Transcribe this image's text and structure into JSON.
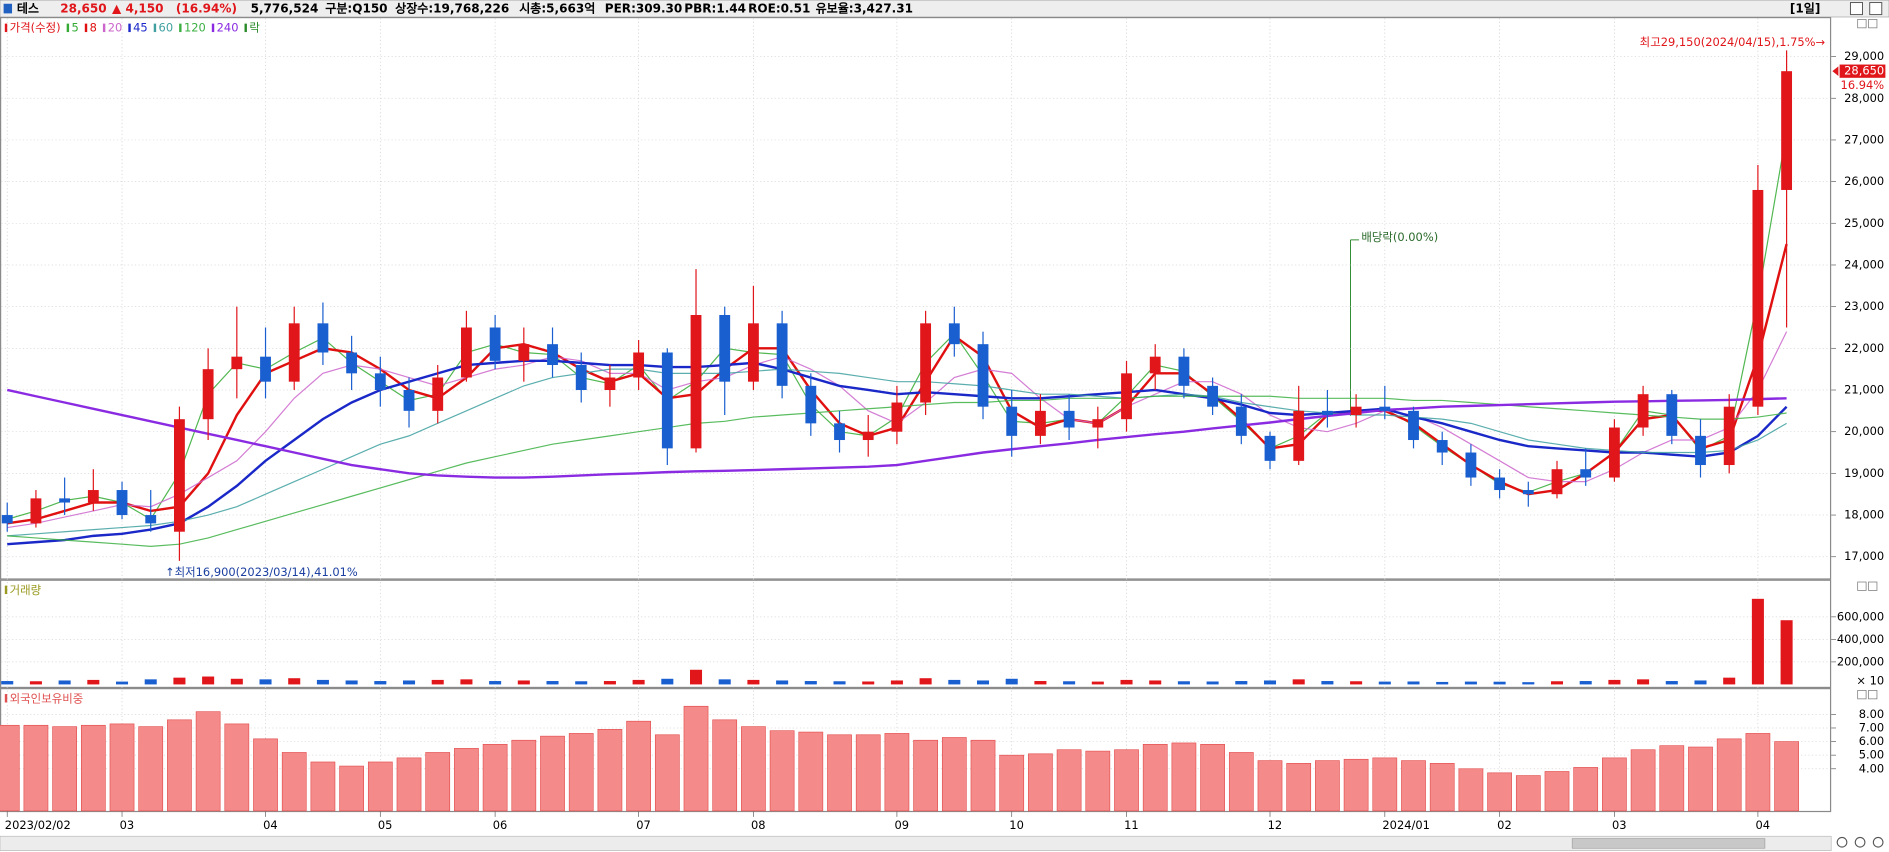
{
  "header": {
    "items": [
      {
        "text": "테스",
        "color": "#000000"
      },
      {
        "text": "28,650",
        "color": "#e0161b"
      },
      {
        "text": "▲ 4,150",
        "color": "#e0161b"
      },
      {
        "text": "(16.94%)",
        "color": "#e0161b"
      },
      {
        "text": "5,776,524",
        "color": "#000000"
      },
      {
        "text": "구분:Q150",
        "color": "#000000"
      },
      {
        "text": "상장수:19,768,226",
        "color": "#000000"
      },
      {
        "text": "시총:5,663억",
        "color": "#000000"
      },
      {
        "text": "PER:309.30",
        "color": "#000000"
      },
      {
        "text": "PBR:1.44",
        "color": "#000000"
      },
      {
        "text": "ROE:0.51",
        "color": "#000000"
      },
      {
        "text": "유보율:3,427.31",
        "color": "#000000"
      }
    ],
    "period": "[1일]"
  },
  "chart_data": [
    {
      "type": "candlestick",
      "price_label": "가격(수정)",
      "event_label": "락",
      "event_color": "#2a8a2a",
      "up_color": "#e0161b",
      "down_color": "#1a5fd0",
      "categories": [
        "2023/02/02",
        null,
        null,
        null,
        "03",
        null,
        null,
        null,
        null,
        "04",
        null,
        null,
        null,
        "05",
        null,
        null,
        null,
        "06",
        null,
        null,
        null,
        null,
        "07",
        null,
        null,
        null,
        "08",
        null,
        null,
        null,
        null,
        "09",
        null,
        null,
        null,
        "10",
        null,
        null,
        null,
        "11",
        null,
        null,
        null,
        null,
        "12",
        null,
        null,
        null,
        "2024/01",
        null,
        null,
        null,
        "02",
        null,
        null,
        null,
        "03",
        null,
        null,
        null,
        null,
        "04",
        null
      ],
      "open": [
        18000,
        17800,
        18400,
        18300,
        18600,
        18000,
        17600,
        20300,
        21500,
        21800,
        21200,
        22600,
        21900,
        21400,
        21000,
        20500,
        21300,
        22500,
        21700,
        22100,
        21600,
        21000,
        21300,
        21900,
        19600,
        22800,
        21200,
        22600,
        21100,
        20200,
        19800,
        20000,
        20700,
        22600,
        22100,
        20600,
        19900,
        20500,
        20100,
        20300,
        21400,
        21800,
        21100,
        20600,
        19900,
        19300,
        20500,
        20400,
        20600,
        20500,
        19800,
        19500,
        18900,
        18600,
        18500,
        19100,
        18900,
        20100,
        20900,
        19900,
        19200,
        20600,
        25800
      ],
      "high": [
        18300,
        18600,
        18900,
        19100,
        18800,
        18600,
        20600,
        22000,
        23000,
        22500,
        23000,
        23100,
        22300,
        21800,
        21300,
        21600,
        22900,
        22800,
        22500,
        22500,
        21900,
        21600,
        22200,
        22000,
        23900,
        23000,
        23500,
        22900,
        21400,
        20500,
        20400,
        21100,
        22900,
        23000,
        22400,
        21000,
        20900,
        20900,
        20600,
        21700,
        22100,
        22000,
        21300,
        20900,
        20000,
        21100,
        21000,
        20900,
        21100,
        20600,
        20000,
        19700,
        19100,
        18800,
        19300,
        19600,
        20300,
        21100,
        21000,
        20300,
        20900,
        26400,
        29150
      ],
      "low": [
        17600,
        17700,
        18000,
        18100,
        17900,
        17600,
        16900,
        19800,
        20800,
        20800,
        21000,
        21600,
        21000,
        20600,
        20100,
        20200,
        21200,
        21500,
        21200,
        21300,
        20700,
        20600,
        21000,
        19200,
        19500,
        20400,
        21000,
        20800,
        19900,
        19500,
        19400,
        19700,
        20400,
        21800,
        20300,
        19400,
        19700,
        19800,
        19600,
        20000,
        21000,
        20800,
        20400,
        19700,
        19100,
        19200,
        20100,
        20100,
        20300,
        19600,
        19200,
        18700,
        18400,
        18200,
        18400,
        18700,
        18800,
        19900,
        19700,
        18900,
        19000,
        20400,
        22500
      ],
      "close": [
        17800,
        18400,
        18300,
        18600,
        18000,
        17800,
        20300,
        21500,
        21800,
        21200,
        22600,
        21900,
        21400,
        21000,
        20500,
        21300,
        22500,
        21700,
        22100,
        21600,
        21000,
        21300,
        21900,
        19600,
        22800,
        21200,
        22600,
        21100,
        20200,
        19800,
        20000,
        20700,
        22600,
        22100,
        20600,
        19900,
        20500,
        20100,
        20300,
        21400,
        21800,
        21100,
        20600,
        19900,
        19300,
        20500,
        20400,
        20600,
        20500,
        19800,
        19500,
        18900,
        18600,
        18500,
        19100,
        18900,
        20100,
        20900,
        19900,
        19200,
        20600,
        25800,
        28650
      ],
      "series": [
        {
          "name": "5",
          "color": "#33aa33",
          "width": 1,
          "values": [
            17900,
            18100,
            18350,
            18450,
            18300,
            17900,
            19000,
            20900,
            21650,
            21500,
            21900,
            22250,
            21650,
            21200,
            20750,
            20900,
            21900,
            22100,
            21900,
            21850,
            21300,
            21150,
            21600,
            20750,
            21200,
            22000,
            21900,
            21850,
            20650,
            20000,
            19900,
            20350,
            21650,
            22350,
            21350,
            20250,
            20200,
            20300,
            20200,
            20850,
            21600,
            21450,
            20850,
            20250,
            19600,
            19900,
            20450,
            20500,
            20550,
            20150,
            19650,
            19200,
            18750,
            18550,
            18800,
            19000,
            19500,
            20500,
            20400,
            19550,
            19900,
            23200,
            27200
          ]
        },
        {
          "name": "8",
          "color": "#e01010",
          "width": 2,
          "values": [
            17800,
            17900,
            18100,
            18300,
            18300,
            18100,
            18200,
            19000,
            20400,
            21400,
            21700,
            22000,
            21900,
            21500,
            21000,
            20800,
            21300,
            22000,
            22100,
            21900,
            21500,
            21200,
            21400,
            20800,
            20900,
            21500,
            22000,
            22000,
            21000,
            20200,
            19900,
            20100,
            21200,
            22300,
            21800,
            20500,
            20100,
            20300,
            20200,
            20600,
            21400,
            21400,
            20900,
            20300,
            19600,
            19700,
            20400,
            20500,
            20500,
            20200,
            19700,
            19200,
            18800,
            18500,
            18600,
            19000,
            19500,
            20300,
            20400,
            19600,
            19800,
            21800,
            24500
          ]
        },
        {
          "name": "20",
          "color": "#cc66cc",
          "width": 1,
          "values": [
            17700,
            17800,
            17950,
            18100,
            18250,
            18200,
            18500,
            18900,
            19300,
            20000,
            20800,
            21400,
            21600,
            21500,
            21300,
            21100,
            21300,
            21500,
            21600,
            21800,
            21700,
            21400,
            21400,
            21000,
            21200,
            21300,
            21600,
            21800,
            21500,
            21100,
            20500,
            20200,
            20700,
            21300,
            21500,
            21400,
            20800,
            20300,
            20200,
            20600,
            20900,
            21200,
            21200,
            20900,
            20400,
            20100,
            20000,
            20200,
            20500,
            20400,
            20100,
            19700,
            19300,
            18900,
            18800,
            18800,
            19100,
            19500,
            19800,
            19800,
            20100,
            21000,
            22400
          ]
        },
        {
          "name": "45",
          "color": "#1a28c8",
          "width": 2,
          "values": [
            17300,
            17350,
            17400,
            17500,
            17550,
            17650,
            17800,
            18200,
            18700,
            19300,
            19800,
            20300,
            20700,
            21000,
            21200,
            21400,
            21600,
            21650,
            21700,
            21700,
            21650,
            21600,
            21600,
            21550,
            21550,
            21600,
            21650,
            21500,
            21300,
            21100,
            21000,
            20900,
            20950,
            20900,
            20850,
            20800,
            20800,
            20850,
            20900,
            20950,
            21000,
            20900,
            20800,
            20650,
            20450,
            20400,
            20450,
            20500,
            20550,
            20350,
            20200,
            20000,
            19800,
            19650,
            19600,
            19550,
            19500,
            19500,
            19450,
            19400,
            19500,
            19900,
            20600
          ]
        },
        {
          "name": "60",
          "color": "#40a0a0",
          "width": 1,
          "values": [
            17500,
            17550,
            17600,
            17650,
            17700,
            17750,
            17850,
            18000,
            18200,
            18500,
            18800,
            19100,
            19400,
            19700,
            19900,
            20200,
            20500,
            20800,
            21100,
            21300,
            21400,
            21500,
            21500,
            21400,
            21400,
            21400,
            21450,
            21500,
            21450,
            21400,
            21300,
            21200,
            21200,
            21150,
            21100,
            21000,
            20900,
            20900,
            20850,
            20800,
            20850,
            20900,
            20850,
            20700,
            20600,
            20500,
            20450,
            20400,
            20400,
            20350,
            20300,
            20200,
            20000,
            19800,
            19700,
            19600,
            19550,
            19500,
            19500,
            19500,
            19550,
            19800,
            20200
          ]
        },
        {
          "name": "120",
          "color": "#3cb043",
          "width": 1,
          "values": [
            17500,
            17450,
            17400,
            17350,
            17300,
            17250,
            17300,
            17450,
            17650,
            17850,
            18050,
            18250,
            18450,
            18650,
            18850,
            19050,
            19250,
            19400,
            19550,
            19700,
            19800,
            19900,
            20000,
            20100,
            20200,
            20250,
            20350,
            20400,
            20450,
            20500,
            20550,
            20600,
            20650,
            20700,
            20700,
            20750,
            20750,
            20800,
            20800,
            20800,
            20850,
            20850,
            20850,
            20850,
            20850,
            20800,
            20800,
            20800,
            20800,
            20750,
            20750,
            20700,
            20650,
            20600,
            20550,
            20500,
            20450,
            20400,
            20350,
            20300,
            20300,
            20350,
            20450
          ]
        },
        {
          "name": "240",
          "color": "#8a2be2",
          "width": 2,
          "values": [
            21000,
            20850,
            20700,
            20550,
            20400,
            20250,
            20100,
            19950,
            19800,
            19650,
            19500,
            19350,
            19200,
            19100,
            19000,
            18950,
            18920,
            18900,
            18900,
            18920,
            18950,
            18980,
            19000,
            19030,
            19050,
            19060,
            19080,
            19100,
            19120,
            19140,
            19160,
            19200,
            19300,
            19400,
            19500,
            19580,
            19650,
            19720,
            19800,
            19870,
            19940,
            20000,
            20080,
            20150,
            20220,
            20300,
            20380,
            20450,
            20520,
            20560,
            20600,
            20620,
            20640,
            20660,
            20680,
            20700,
            20720,
            20730,
            20740,
            20750,
            20760,
            20780,
            20800
          ]
        }
      ],
      "ylim": [
        16480,
        29950
      ],
      "yticks": [
        {
          "value": 17000,
          "label": "17,000"
        },
        {
          "value": 18000,
          "label": "18,000"
        },
        {
          "value": 19000,
          "label": "19,000"
        },
        {
          "value": 20000,
          "label": "20,000"
        },
        {
          "value": 21000,
          "label": "21,000"
        },
        {
          "value": 22000,
          "label": "22,000"
        },
        {
          "value": 23000,
          "label": "23,000"
        },
        {
          "value": 24000,
          "label": "24,000"
        },
        {
          "value": 25000,
          "label": "25,000"
        },
        {
          "value": 26000,
          "label": "26,000"
        },
        {
          "value": 27000,
          "label": "27,000"
        },
        {
          "value": 28000,
          "label": "28,000"
        },
        {
          "value": 29000,
          "label": "29,000"
        }
      ],
      "grid": true,
      "last_label": "28,650",
      "change_label": "16.94%",
      "annotations": [
        {
          "text": "최고29,150(2024/04/15),1.75%→",
          "color": "#e0161b"
        },
        {
          "text": "↑최저16,900(2023/03/14),41.01%",
          "color": "#1a3fa0"
        },
        {
          "text": "배당락(0.00%)",
          "color": "#2a6a2a"
        }
      ]
    },
    {
      "type": "bar",
      "title": "거래량",
      "title_color": "#9a9a20",
      "values": [
        30000,
        28000,
        35000,
        40000,
        25000,
        45000,
        60000,
        70000,
        50000,
        45000,
        55000,
        40000,
        35000,
        30000,
        35000,
        40000,
        45000,
        30000,
        35000,
        30000,
        28000,
        30000,
        40000,
        50000,
        130000,
        45000,
        40000,
        35000,
        30000,
        28000,
        26000,
        35000,
        55000,
        40000,
        35000,
        50000,
        30000,
        28000,
        25000,
        40000,
        35000,
        28000,
        26000,
        30000,
        35000,
        45000,
        30000,
        28000,
        25000,
        26000,
        22000,
        25000,
        24000,
        20000,
        28000,
        30000,
        40000,
        45000,
        30000,
        35000,
        60000,
        760000,
        570000
      ],
      "ylim": [
        0,
        920000
      ],
      "yticks": [
        {
          "value": 200000,
          "label": "200,000"
        },
        {
          "value": 400000,
          "label": "400,000"
        },
        {
          "value": 600000,
          "label": "600,000"
        }
      ],
      "unit": "× 10",
      "grid": true
    },
    {
      "type": "bar",
      "title": "외국인보유비중",
      "title_color": "#e05050",
      "color": "#f58a8a",
      "edge_color": "#e04848",
      "values": [
        7.2,
        7.2,
        7.1,
        7.2,
        7.3,
        7.1,
        7.6,
        8.2,
        7.3,
        6.2,
        5.2,
        4.5,
        4.2,
        4.5,
        4.8,
        5.2,
        5.5,
        5.8,
        6.1,
        6.4,
        6.6,
        6.9,
        7.5,
        6.5,
        8.6,
        7.6,
        7.1,
        6.8,
        6.7,
        6.5,
        6.5,
        6.6,
        6.1,
        6.3,
        6.1,
        5.0,
        5.1,
        5.4,
        5.3,
        5.4,
        5.8,
        5.9,
        5.8,
        5.2,
        4.6,
        4.4,
        4.6,
        4.7,
        4.8,
        4.6,
        4.4,
        4.0,
        3.7,
        3.5,
        3.8,
        4.1,
        4.8,
        5.4,
        5.7,
        5.6,
        6.2,
        6.6,
        6.0
      ],
      "ylim": [
        0.9,
        9.85
      ],
      "yticks": [
        {
          "value": 4,
          "label": "4.00"
        },
        {
          "value": 5,
          "label": "5.00"
        },
        {
          "value": 6,
          "label": "6.00"
        },
        {
          "value": 7,
          "label": "7.00"
        },
        {
          "value": 8,
          "label": "8.00"
        }
      ],
      "grid": true
    }
  ]
}
